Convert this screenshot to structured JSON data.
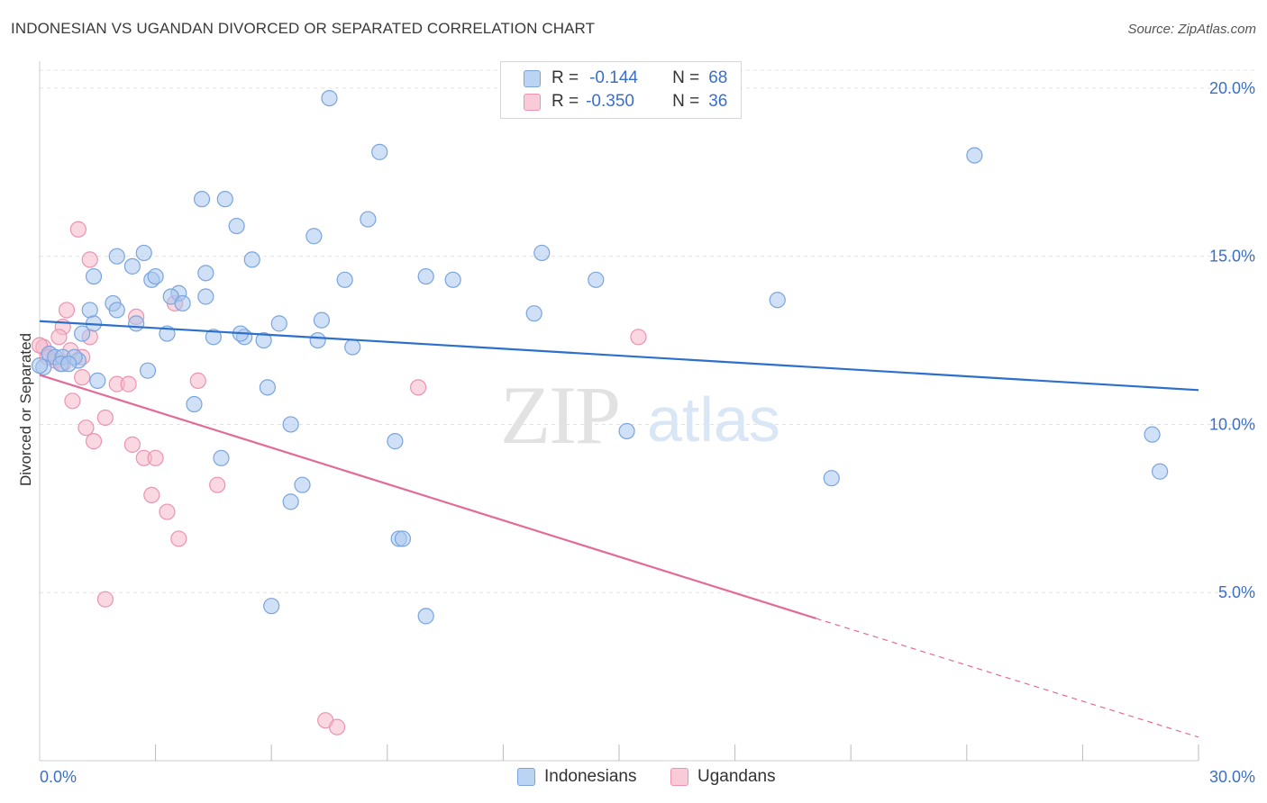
{
  "title": "INDONESIAN VS UGANDAN DIVORCED OR SEPARATED CORRELATION CHART",
  "source": "Source: ZipAtlas.com",
  "watermark": {
    "zip": "ZIP",
    "atlas": "atlas"
  },
  "legend": {
    "series": [
      {
        "r_label": "R =",
        "r_value": "-0.144",
        "n_label": "N =",
        "n_value": "68"
      },
      {
        "r_label": "R =",
        "r_value": "-0.350",
        "n_label": "N =",
        "n_value": "36"
      }
    ]
  },
  "bottom_legend": {
    "indonesians": "Indonesians",
    "ugandans": "Ugandans"
  },
  "colors": {
    "blue_fill": "#a9c7ef",
    "blue_stroke": "#7aa5dc",
    "blue_line": "#2d6fcc",
    "pink_fill": "#f5b8cb",
    "pink_stroke": "#ec93b1",
    "pink_line": "#e26b97",
    "tick_text": "#3b6fc6",
    "grid": "#e3e3e3"
  },
  "chart_data": {
    "type": "scatter",
    "title": "INDONESIAN VS UGANDAN DIVORCED OR SEPARATED CORRELATION CHART",
    "xlabel": "",
    "ylabel": "Divorced or Separated",
    "xlim": [
      0,
      30
    ],
    "ylim": [
      0,
      20.8
    ],
    "x_tick_labels": [
      "0.0%",
      "30.0%"
    ],
    "y_ticks": [
      5,
      10,
      15,
      20
    ],
    "y_tick_labels": [
      "5.0%",
      "10.0%",
      "15.0%",
      "20.0%"
    ],
    "grid": true,
    "series": [
      {
        "name": "Indonesians",
        "points": [
          [
            7.5,
            19.7
          ],
          [
            8.8,
            18.1
          ],
          [
            24.2,
            18.0
          ],
          [
            4.2,
            16.7
          ],
          [
            4.8,
            16.7
          ],
          [
            8.5,
            16.1
          ],
          [
            5.1,
            15.9
          ],
          [
            7.1,
            15.6
          ],
          [
            2.7,
            15.1
          ],
          [
            2.0,
            15.0
          ],
          [
            5.5,
            14.9
          ],
          [
            13.0,
            15.1
          ],
          [
            2.4,
            14.7
          ],
          [
            1.4,
            14.4
          ],
          [
            4.3,
            14.5
          ],
          [
            2.9,
            14.3
          ],
          [
            3.0,
            14.4
          ],
          [
            7.9,
            14.3
          ],
          [
            10.0,
            14.4
          ],
          [
            10.7,
            14.3
          ],
          [
            14.4,
            14.3
          ],
          [
            3.6,
            13.9
          ],
          [
            4.3,
            13.8
          ],
          [
            3.4,
            13.8
          ],
          [
            3.7,
            13.6
          ],
          [
            1.9,
            13.6
          ],
          [
            1.3,
            13.4
          ],
          [
            2.0,
            13.4
          ],
          [
            12.8,
            13.3
          ],
          [
            19.1,
            13.7
          ],
          [
            1.4,
            13.0
          ],
          [
            2.5,
            13.0
          ],
          [
            6.2,
            13.0
          ],
          [
            7.3,
            13.1
          ],
          [
            1.1,
            12.7
          ],
          [
            3.3,
            12.7
          ],
          [
            4.5,
            12.6
          ],
          [
            5.3,
            12.6
          ],
          [
            5.2,
            12.7
          ],
          [
            5.8,
            12.5
          ],
          [
            7.2,
            12.5
          ],
          [
            8.1,
            12.3
          ],
          [
            0.25,
            12.1
          ],
          [
            0.4,
            12.0
          ],
          [
            0.6,
            12.0
          ],
          [
            1.0,
            11.9
          ],
          [
            0.9,
            12.0
          ],
          [
            0.55,
            11.8
          ],
          [
            0.75,
            11.8
          ],
          [
            0.1,
            11.7
          ],
          [
            1.5,
            11.3
          ],
          [
            2.8,
            11.6
          ],
          [
            5.9,
            11.1
          ],
          [
            4.0,
            10.6
          ],
          [
            6.5,
            10.0
          ],
          [
            15.2,
            9.8
          ],
          [
            9.2,
            9.5
          ],
          [
            28.8,
            9.7
          ],
          [
            4.7,
            9.0
          ],
          [
            6.8,
            8.2
          ],
          [
            20.5,
            8.4
          ],
          [
            29.0,
            8.6
          ],
          [
            6.5,
            7.7
          ],
          [
            9.3,
            6.6
          ],
          [
            9.4,
            6.6
          ],
          [
            6.0,
            4.6
          ],
          [
            10.0,
            4.3
          ],
          [
            0.0,
            11.75
          ]
        ]
      },
      {
        "name": "Ugandans",
        "points": [
          [
            1.0,
            15.8
          ],
          [
            1.3,
            14.9
          ],
          [
            0.7,
            13.4
          ],
          [
            2.5,
            13.2
          ],
          [
            3.5,
            13.6
          ],
          [
            0.6,
            12.9
          ],
          [
            0.1,
            12.3
          ],
          [
            0.5,
            12.6
          ],
          [
            1.3,
            12.6
          ],
          [
            15.5,
            12.6
          ],
          [
            0.8,
            12.2
          ],
          [
            0.25,
            12.1
          ],
          [
            0.4,
            11.9
          ],
          [
            1.1,
            12.0
          ],
          [
            0.0,
            12.35
          ],
          [
            0.6,
            11.8
          ],
          [
            1.1,
            11.4
          ],
          [
            2.0,
            11.2
          ],
          [
            2.3,
            11.2
          ],
          [
            4.1,
            11.3
          ],
          [
            9.8,
            11.1
          ],
          [
            0.85,
            10.7
          ],
          [
            1.2,
            9.9
          ],
          [
            1.7,
            10.2
          ],
          [
            1.4,
            9.5
          ],
          [
            2.4,
            9.4
          ],
          [
            2.7,
            9.0
          ],
          [
            3.0,
            9.0
          ],
          [
            4.6,
            8.2
          ],
          [
            2.9,
            7.9
          ],
          [
            3.3,
            7.4
          ],
          [
            3.6,
            6.6
          ],
          [
            1.7,
            4.8
          ],
          [
            7.4,
            1.2
          ],
          [
            7.7,
            1.0
          ],
          [
            0.2,
            12.0
          ]
        ]
      }
    ],
    "trendlines": [
      {
        "series": "Indonesians",
        "x": [
          0,
          30
        ],
        "y": [
          13.07,
          11.02
        ]
      },
      {
        "series": "Ugandans",
        "x": [
          0,
          20.1
        ],
        "y": [
          11.47,
          4.23
        ],
        "dashed_to": [
          30,
          0.7
        ]
      }
    ]
  }
}
